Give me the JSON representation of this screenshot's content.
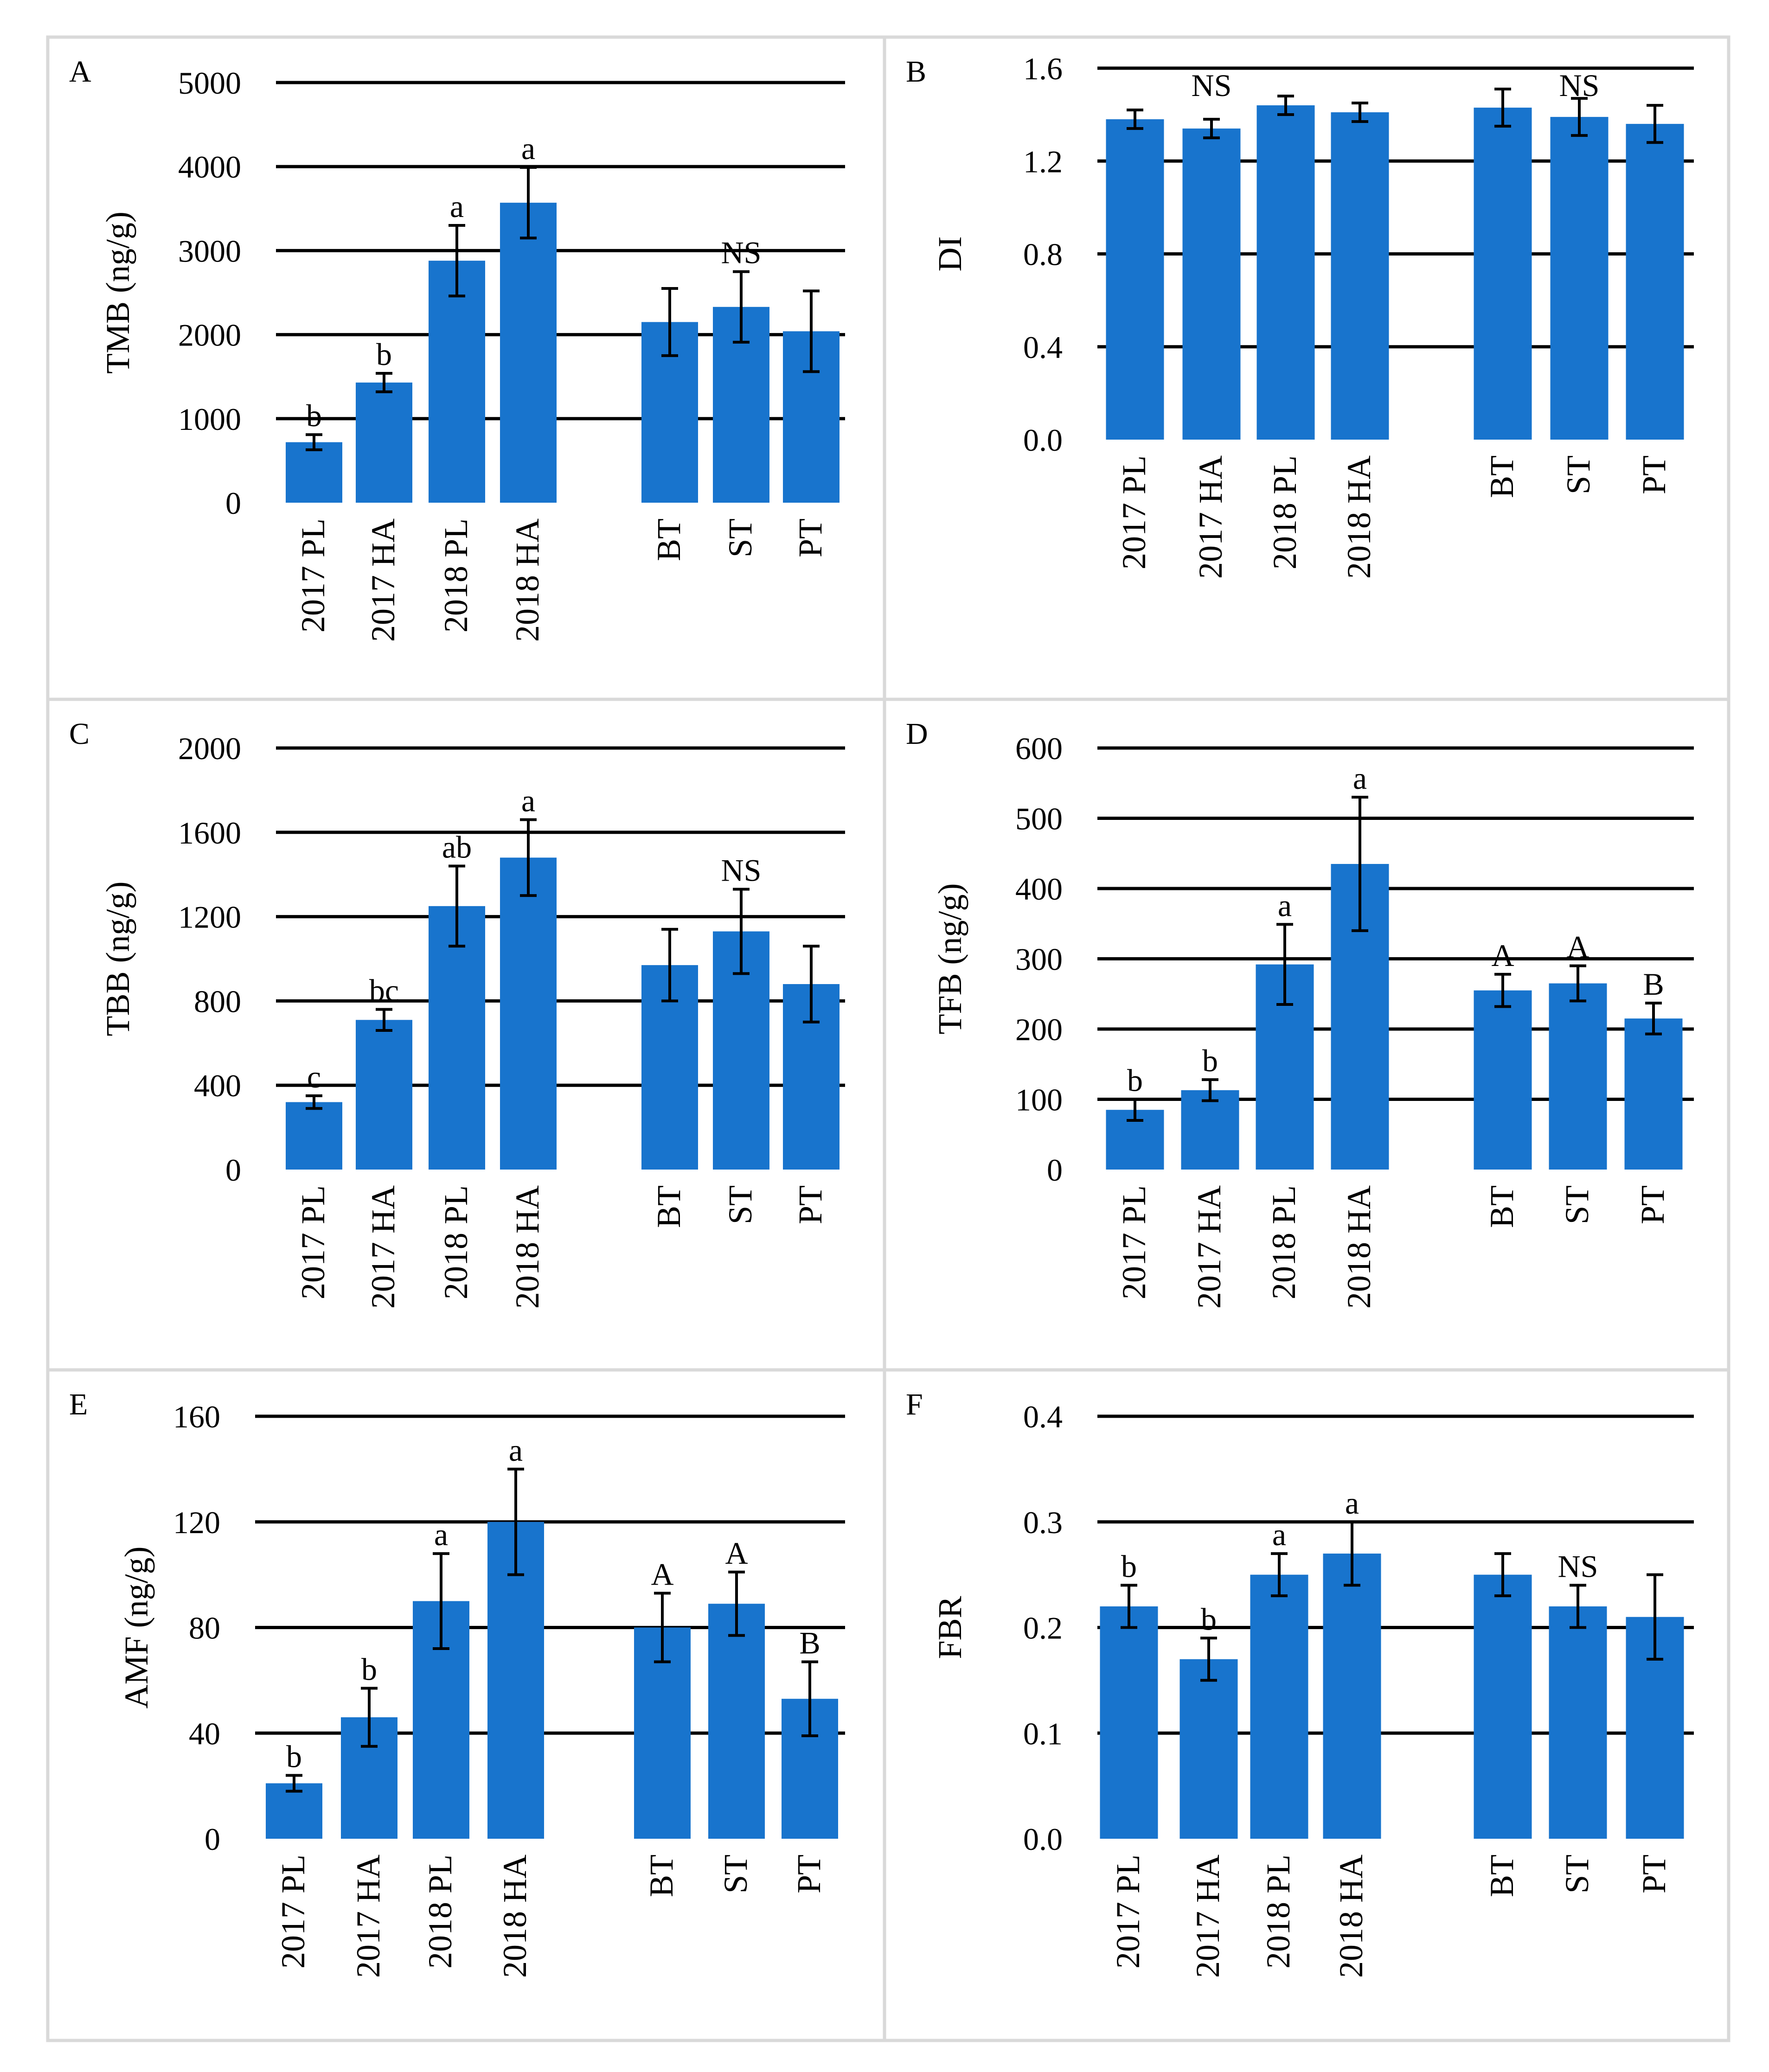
{
  "figure": {
    "bar_color": "#1874cd",
    "grid_color": "#000000",
    "border_color": "#d9d9d9"
  },
  "chart_data": [
    {
      "panel": "A",
      "type": "bar",
      "ylabel": "TMB (ng/g)",
      "ylim": [
        0,
        5000
      ],
      "yticks": [
        "0",
        "1000",
        "2000",
        "3000",
        "4000",
        "5000"
      ],
      "categories": [
        "2017 PL",
        "2017 HA",
        "2018 PL",
        "2018 HA",
        "BT",
        "ST",
        "PT"
      ],
      "values": [
        720,
        1430,
        2880,
        3570,
        2150,
        2330,
        2040
      ],
      "errors": [
        90,
        110,
        420,
        420,
        400,
        420,
        480
      ],
      "letters": [
        "b",
        "b",
        "a",
        "a",
        "",
        "",
        ""
      ],
      "group_label": {
        "text": "NS",
        "over": 5
      }
    },
    {
      "panel": "B",
      "type": "bar",
      "ylabel": "DI",
      "ylim": [
        0,
        1.6
      ],
      "yticks": [
        "0.0",
        "0.4",
        "0.8",
        "1.2",
        "1.6"
      ],
      "categories": [
        "2017 PL",
        "2017 HA",
        "2018 PL",
        "2018 HA",
        "BT",
        "ST",
        "PT"
      ],
      "values": [
        1.38,
        1.34,
        1.44,
        1.41,
        1.43,
        1.39,
        1.36
      ],
      "errors": [
        0.04,
        0.04,
        0.04,
        0.04,
        0.08,
        0.08,
        0.08
      ],
      "letters": [
        "",
        "",
        "",
        "",
        "",
        "",
        ""
      ],
      "group_label": [
        {
          "text": "NS",
          "over": 1
        },
        {
          "text": "NS",
          "over": 5
        }
      ]
    },
    {
      "panel": "C",
      "type": "bar",
      "ylabel": "TBB (ng/g)",
      "ylim": [
        0,
        2000
      ],
      "yticks": [
        "0",
        "400",
        "800",
        "1200",
        "1600",
        "2000"
      ],
      "categories": [
        "2017 PL",
        "2017 HA",
        "2018 PL",
        "2018 HA",
        "BT",
        "ST",
        "PT"
      ],
      "values": [
        320,
        710,
        1250,
        1480,
        970,
        1130,
        880
      ],
      "errors": [
        30,
        50,
        190,
        180,
        170,
        200,
        180
      ],
      "letters": [
        "c",
        "bc",
        "ab",
        "a",
        "",
        "",
        ""
      ],
      "group_label": {
        "text": "NS",
        "over": 5
      }
    },
    {
      "panel": "D",
      "type": "bar",
      "ylabel": "TFB (ng/g)",
      "ylim": [
        0,
        600
      ],
      "yticks": [
        "0",
        "100",
        "200",
        "300",
        "400",
        "500",
        "600"
      ],
      "categories": [
        "2017 PL",
        "2017 HA",
        "2018 PL",
        "2018 HA",
        "BT",
        "ST",
        "PT"
      ],
      "values": [
        85,
        113,
        292,
        435,
        255,
        265,
        215
      ],
      "errors": [
        15,
        15,
        57,
        95,
        23,
        25,
        22
      ],
      "letters": [
        "b",
        "b",
        "a",
        "a",
        "A",
        "A",
        "B"
      ],
      "group_label": null
    },
    {
      "panel": "E",
      "type": "bar",
      "ylabel": "AMF (ng/g)",
      "ylim": [
        0,
        160
      ],
      "yticks": [
        "0",
        "40",
        "80",
        "120",
        "160"
      ],
      "categories": [
        "2017 PL",
        "2017 HA",
        "2018 PL",
        "2018 HA",
        "BT",
        "ST",
        "PT"
      ],
      "values": [
        21,
        46,
        90,
        120,
        80,
        89,
        53
      ],
      "errors": [
        3,
        11,
        18,
        20,
        13,
        12,
        14
      ],
      "letters": [
        "b",
        "b",
        "a",
        "a",
        "A",
        "A",
        "B"
      ],
      "group_label": null
    },
    {
      "panel": "F",
      "type": "bar",
      "ylabel": "FBR",
      "ylim": [
        0,
        0.4
      ],
      "yticks": [
        "0.0",
        "0.1",
        "0.2",
        "0.3",
        "0.4"
      ],
      "categories": [
        "2017 PL",
        "2017 HA",
        "2018 PL",
        "2018 HA",
        "BT",
        "ST",
        "PT"
      ],
      "values": [
        0.22,
        0.17,
        0.25,
        0.27,
        0.25,
        0.22,
        0.21
      ],
      "errors": [
        0.02,
        0.02,
        0.02,
        0.03,
        0.02,
        0.02,
        0.04
      ],
      "letters": [
        "b",
        "b",
        "a",
        "a",
        "",
        "",
        ""
      ],
      "group_label": {
        "text": "NS",
        "over": 5
      }
    }
  ]
}
